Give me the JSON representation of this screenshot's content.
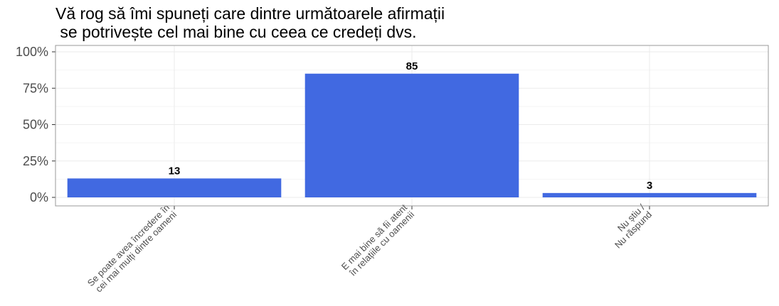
{
  "chart_data": {
    "type": "bar",
    "title_lines": [
      "Vă rog să îmi spuneți care dintre următoarele afirmații",
      " se potrivește cel mai bine cu ceea ce credeți dvs."
    ],
    "categories": [
      [
        "Se poate avea încredere în",
        "cei mai mulți dintre oameni"
      ],
      [
        "E mai bine să fii atent",
        "în relațiile cu oamenii"
      ],
      [
        "Nu știu /",
        "Nu răspund"
      ]
    ],
    "values": [
      13,
      85,
      3
    ],
    "data_labels": [
      "13",
      "85",
      "3"
    ],
    "ylim": [
      0,
      100
    ],
    "yticks": [
      0,
      25,
      50,
      75,
      100
    ],
    "ytick_labels": [
      "0%",
      "25%",
      "50%",
      "75%",
      "100%"
    ],
    "xlabel": "",
    "ylabel": "",
    "grid": true,
    "bar_color": "#4169E1",
    "grid_color": "#ebebeb",
    "panel_border_color": "#999999"
  }
}
